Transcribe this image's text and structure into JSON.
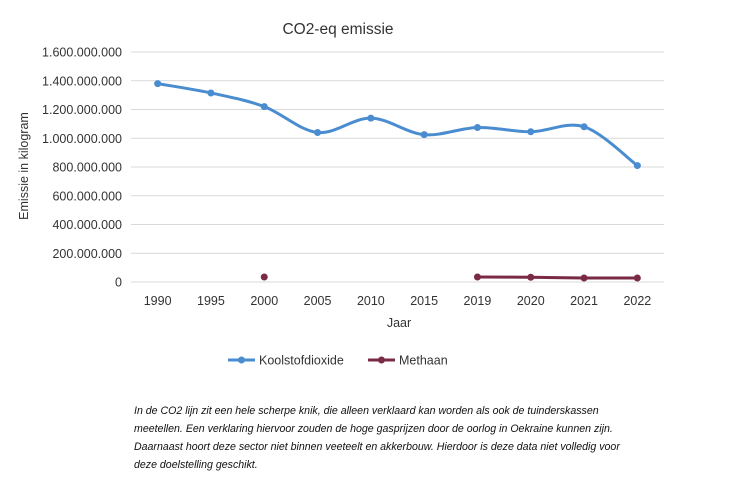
{
  "chart_data": {
    "type": "line",
    "title": "CO2-eq emissie",
    "xlabel": "Jaar",
    "ylabel": "Emissie in kilogram",
    "categories": [
      "1990",
      "1995",
      "2000",
      "2005",
      "2010",
      "2015",
      "2019",
      "2020",
      "2021",
      "2022"
    ],
    "ylim": [
      0,
      1600000000
    ],
    "yticks": [
      "0",
      "200.000.000",
      "400.000.000",
      "600.000.000",
      "800.000.000",
      "1.000.000.000",
      "1.200.000.000",
      "1.400.000.000",
      "1.600.000.000"
    ],
    "grid": true,
    "legend": "bottom",
    "smooth": true,
    "series": [
      {
        "name": "Koolstofdioxide",
        "color": "#4a8cd0",
        "values": [
          1380000000,
          1315000000,
          1220000000,
          1040000000,
          1140000000,
          1025000000,
          1075000000,
          1045000000,
          1080000000,
          810000000
        ]
      },
      {
        "name": "Methaan",
        "color": "#7b2a45",
        "values": [
          null,
          null,
          35000000,
          null,
          null,
          null,
          35000000,
          33000000,
          28000000,
          28000000
        ]
      }
    ]
  },
  "note": {
    "lines": [
      "In de CO2 lijn zit een hele scherpe knik, die alleen verklaard kan worden als ook de tuinderskassen",
      "meetellen. Een verklaring hiervoor zouden de hoge gasprijzen door de oorlog in Oekraine kunnen zijn.",
      "Daarnaast hoort  deze sector niet binnen veeteelt en akkerbouw. Hierdoor is deze data niet volledig voor",
      "deze doelstelling geschikt."
    ]
  }
}
